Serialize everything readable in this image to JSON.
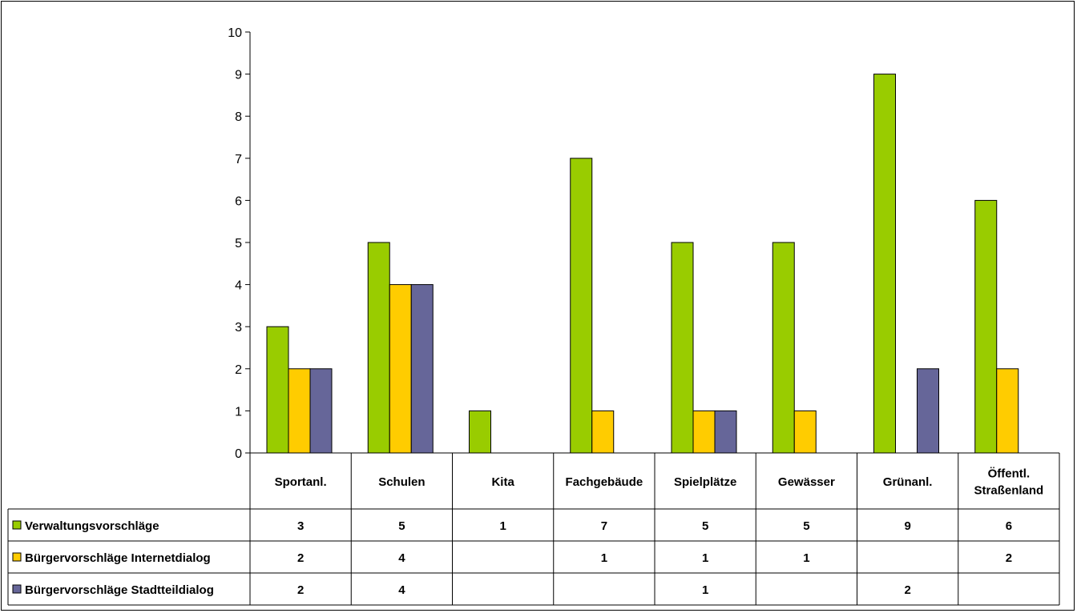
{
  "chart_data": {
    "type": "bar",
    "title": "",
    "xlabel": "",
    "ylabel": "",
    "ylim": [
      0,
      10
    ],
    "yticks": [
      0,
      1,
      2,
      3,
      4,
      5,
      6,
      7,
      8,
      9,
      10
    ],
    "grid": false,
    "legend": "data-table",
    "categories": [
      [
        "Sportanl."
      ],
      [
        "Schulen"
      ],
      [
        "Kita"
      ],
      [
        "Fachgebäude"
      ],
      [
        "Spielplätze"
      ],
      [
        "Gewässer"
      ],
      [
        "Grünanl."
      ],
      [
        "Öffentl.",
        "Straßenland"
      ]
    ],
    "series": [
      {
        "name": "Verwaltungsvorschläge",
        "color": "#99cc00",
        "values": [
          3,
          5,
          1,
          7,
          5,
          5,
          9,
          6
        ]
      },
      {
        "name": "Bürgervorschläge Internetdialog",
        "color": "#ffcc00",
        "values": [
          2,
          4,
          null,
          1,
          1,
          1,
          null,
          2
        ]
      },
      {
        "name": "Bürgervorschläge Stadtteildialog",
        "color": "#666699",
        "values": [
          2,
          4,
          null,
          null,
          1,
          null,
          2,
          null
        ]
      }
    ]
  }
}
